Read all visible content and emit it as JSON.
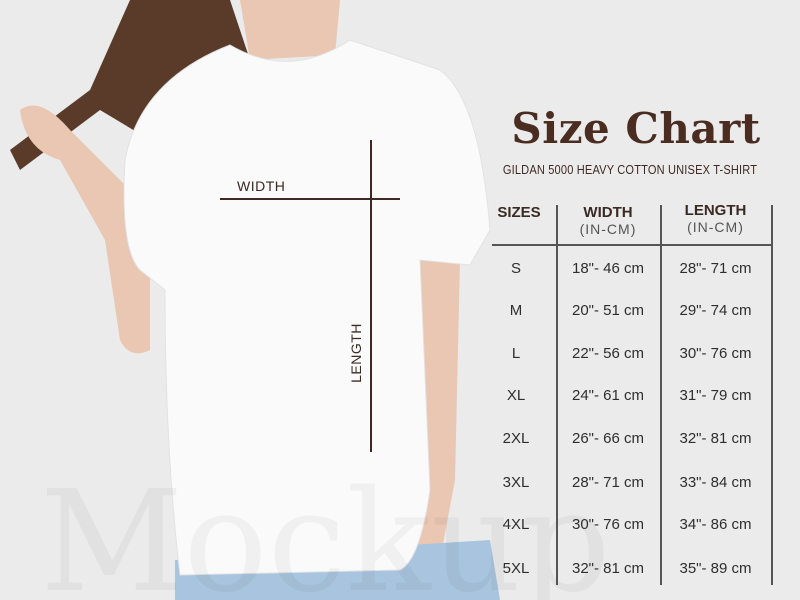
{
  "header": {
    "title": "Size Chart",
    "subtitle": "GILDAN 5000 HEAVY COTTON UNISEX T-SHIRT"
  },
  "measurements": {
    "width_label": "WIDTH",
    "length_label": "LENGTH"
  },
  "table": {
    "columns": [
      {
        "label": "SIZES",
        "unit": ""
      },
      {
        "label": "WIDTH",
        "unit": "(IN-CM)"
      },
      {
        "label": "LENGTH",
        "unit": "(IN-CM)"
      }
    ],
    "rows": [
      {
        "size": "S",
        "width": "18\"- 46 cm",
        "length": "28\"- 71 cm"
      },
      {
        "size": "M",
        "width": "20\"- 51 cm",
        "length": "29\"- 74 cm"
      },
      {
        "size": "L",
        "width": "22\"- 56 cm",
        "length": "30\"- 76 cm"
      },
      {
        "size": "XL",
        "width": "24\"- 61 cm",
        "length": "31\"- 79 cm"
      },
      {
        "size": "2XL",
        "width": "26\"- 66 cm",
        "length": "32\"- 81 cm"
      },
      {
        "size": "3XL",
        "width": "28\"- 71 cm",
        "length": "33\"- 84 cm"
      },
      {
        "size": "4XL",
        "width": "30\"- 76 cm",
        "length": "34\"- 86 cm"
      },
      {
        "size": "5XL",
        "width": "32\"- 81 cm",
        "length": "35\"- 89 cm"
      }
    ]
  },
  "colors": {
    "title": "#4a2c20",
    "background": "#ebebeb",
    "shirt": "#fafafa"
  }
}
